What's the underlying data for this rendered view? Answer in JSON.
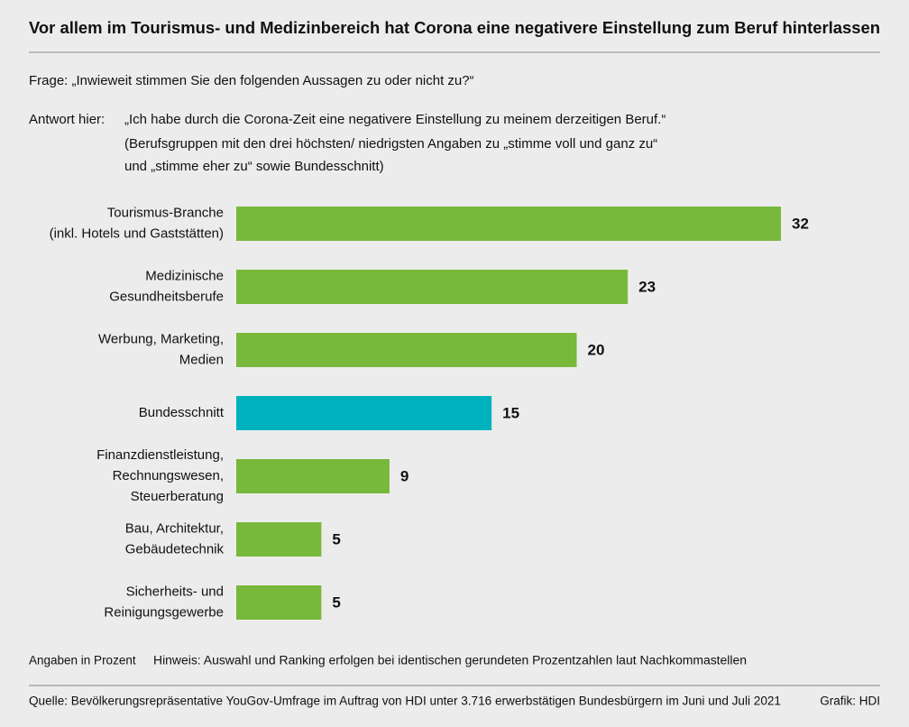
{
  "chart_data": {
    "type": "bar",
    "title": "Vor allem im Tourismus- und Medizinbereich hat Corona eine negativere Einstellung zum Beruf hinterlassen",
    "question": "Frage: „Inwieweit stimmen Sie den folgenden Aussagen zu oder nicht zu?“",
    "answer_label": "Antwort hier:",
    "answer_lines": [
      "„Ich habe durch die Corona-Zeit eine negativere Einstellung zu meinem derzeitigen Beruf.“",
      "(Berufsgruppen mit den drei höchsten/ niedrigsten Angaben zu „stimme voll und ganz zu“",
      "und „stimme eher zu“ sowie Bundesschnitt)"
    ],
    "categories": [
      [
        "Tourismus-Branche",
        "(inkl. Hotels und Gaststätten)"
      ],
      [
        "Medizinische",
        "Gesundheitsberufe"
      ],
      [
        "Werbung, Marketing,",
        "Medien"
      ],
      [
        "Bundesschnitt"
      ],
      [
        "Finanzdienstleistung,",
        "Rechnungswesen,",
        "Steuerberatung"
      ],
      [
        "Bau, Architektur,",
        "Gebäudetechnik"
      ],
      [
        "Sicherheits- und",
        "Reinigungsgewerbe"
      ]
    ],
    "values": [
      32,
      23,
      20,
      15,
      9,
      5,
      5
    ],
    "colors": [
      "#78b83a",
      "#78b83a",
      "#78b83a",
      "#00b2bd",
      "#78b83a",
      "#78b83a",
      "#78b83a"
    ],
    "unit_note": "Angaben in Prozent",
    "note": "Hinweis: Auswahl und Ranking erfolgen bei identischen gerundeten Prozentzahlen laut Nachkommastellen",
    "source": "Quelle: Bevölkerungsrepräsentative YouGov-Umfrage im Auftrag von HDI unter 3.716 erwerbstätigen Bundesbürgern im Juni und Juli 2021",
    "credit": "Grafik: HDI"
  }
}
